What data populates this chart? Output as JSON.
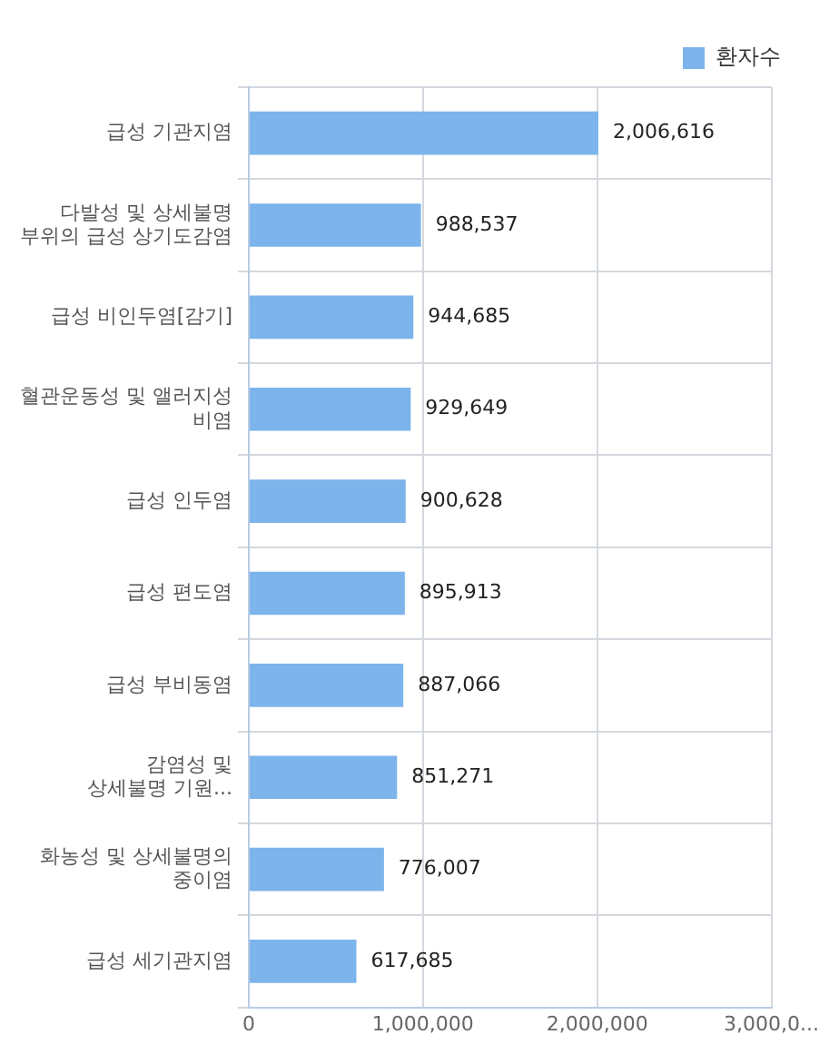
{
  "chart_data": {
    "type": "bar",
    "orientation": "horizontal",
    "categories": [
      "급성 기관지염",
      "다발성 및 상세불명 부위의 급성 상기도감염",
      "급성 비인두염[감기]",
      "혈관운동성 및 앨러지성 비염",
      "급성 인두염",
      "급성 편도염",
      "급성 부비동염",
      "감염성 및 상세불명 기원...",
      "화농성 및 상세불명의 중이염",
      "급성 세기관지염"
    ],
    "series": [
      {
        "name": "환자수",
        "color": "#7cb4eb",
        "values": [
          2006616,
          988537,
          944685,
          929649,
          900628,
          895913,
          887066,
          851271,
          776007,
          617685
        ],
        "value_labels": [
          "2,006,616",
          "988,537",
          "944,685",
          "929,649",
          "900,628",
          "895,913",
          "887,066",
          "851,271",
          "776,007",
          "617,685"
        ]
      }
    ],
    "xlim": [
      0,
      3000000
    ],
    "xticks": [
      0,
      {
        "value": 1000000,
        "label": "1,000,000"
      },
      {
        "value": 2000000,
        "label": "2,000,000"
      },
      {
        "value": 3000000,
        "label": "3,000,0..."
      }
    ],
    "grid": true,
    "legend": "top right"
  }
}
